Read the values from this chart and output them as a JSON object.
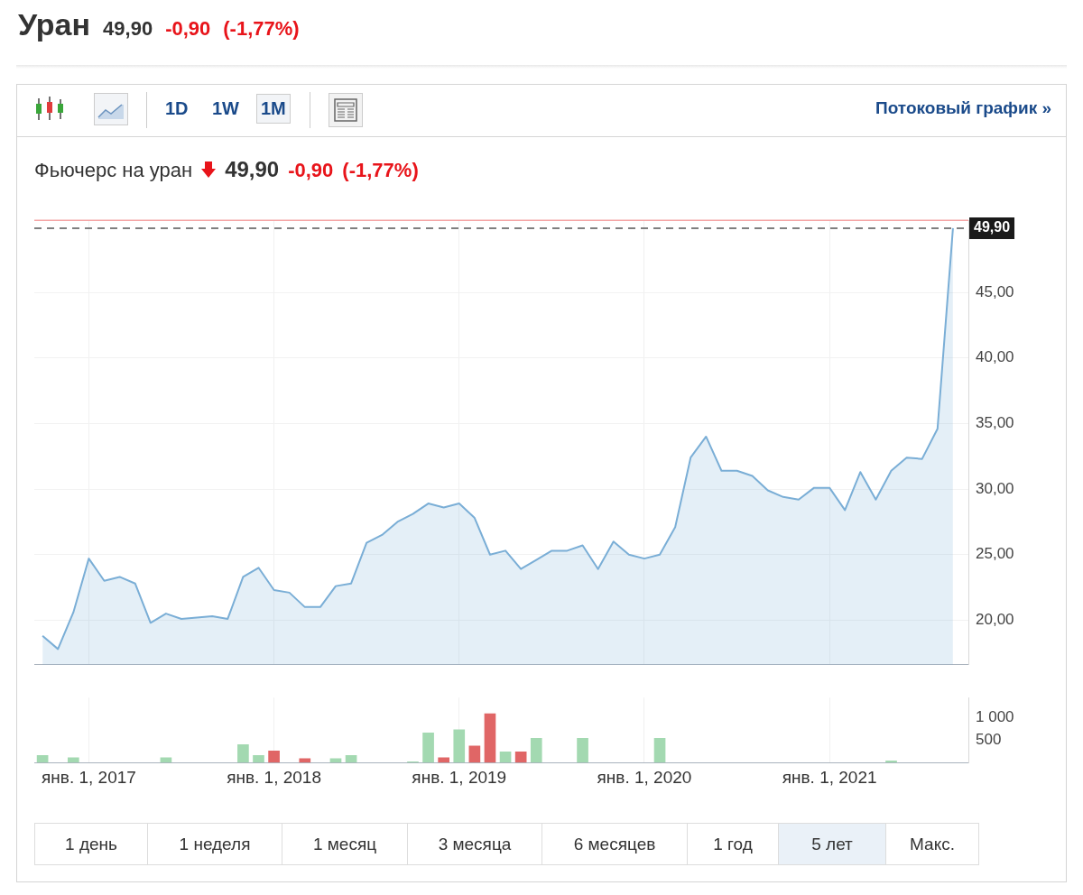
{
  "chart_data": [
    {
      "type": "area",
      "title": "Уран",
      "subtitle": "Фьючерс на уран",
      "annotations": [
        "49,90",
        "-0,90",
        "(-1,77%)",
        "1D",
        "1W",
        "1M",
        "Потоковый график »",
        "49,90",
        "-0,90",
        "(-1,77%)",
        "1 день",
        "1 неделя",
        "1 месяц",
        "3 месяца",
        "6 месяцев",
        "1 год",
        "5 лет",
        "Макс."
      ],
      "x": [
        "2016-10",
        "2016-11",
        "2016-12",
        "2017-01",
        "2017-02",
        "2017-03",
        "2017-04",
        "2017-05",
        "2017-06",
        "2017-07",
        "2017-08",
        "2017-09",
        "2017-10",
        "2017-11",
        "2017-12",
        "2018-01",
        "2018-02",
        "2018-03",
        "2018-04",
        "2018-05",
        "2018-06",
        "2018-07",
        "2018-08",
        "2018-09",
        "2018-10",
        "2018-11",
        "2018-12",
        "2019-01",
        "2019-02",
        "2019-03",
        "2019-04",
        "2019-05",
        "2019-06",
        "2019-07",
        "2019-08",
        "2019-09",
        "2019-10",
        "2019-11",
        "2019-12",
        "2020-01",
        "2020-02",
        "2020-03",
        "2020-04",
        "2020-05",
        "2020-06",
        "2020-07",
        "2020-08",
        "2020-09",
        "2020-10",
        "2020-11",
        "2020-12",
        "2021-01",
        "2021-02",
        "2021-03",
        "2021-04",
        "2021-05",
        "2021-06",
        "2021-07",
        "2021-08",
        "2021-09"
      ],
      "series": [
        {
          "color": "#7aaed6",
          "values": [
            18.8,
            17.8,
            20.6,
            24.7,
            23.0,
            23.3,
            22.8,
            19.8,
            20.5,
            20.1,
            20.2,
            20.3,
            20.1,
            23.3,
            24.0,
            22.3,
            22.1,
            21.0,
            21.0,
            22.6,
            22.8,
            25.9,
            26.5,
            27.5,
            28.1,
            28.9,
            28.6,
            28.9,
            27.8,
            25.0,
            25.3,
            23.9,
            24.6,
            25.3,
            25.3,
            25.7,
            23.9,
            26.0,
            25.0,
            24.7,
            25.0,
            27.1,
            32.4,
            34.0,
            31.4,
            31.4,
            31.0,
            29.9,
            29.4,
            29.2,
            30.1,
            30.1,
            28.4,
            31.3,
            29.2,
            31.4,
            32.4,
            32.3,
            34.6,
            49.9
          ]
        }
      ],
      "marker": "none",
      "xlim": [
        "2016-09-15",
        "2021-10"
      ],
      "xticks": [
        {
          "value": "2017-01",
          "label": null
        },
        {
          "value": "2018-01",
          "label": null
        },
        {
          "value": "2019-01",
          "label": null
        },
        {
          "value": "2020-01",
          "label": null
        },
        {
          "value": "2021-01",
          "label": null
        }
      ],
      "ylim": [
        16.6,
        50.5
      ],
      "yticks": [
        {
          "value": 20,
          "label": "20,00"
        },
        {
          "value": 25,
          "label": "25,00"
        },
        {
          "value": 30,
          "label": "30,00"
        },
        {
          "value": 35,
          "label": "35,00"
        },
        {
          "value": 40,
          "label": "40,00"
        },
        {
          "value": 45,
          "label": "45,00"
        }
      ],
      "tick_labels": "y",
      "grid": true,
      "ref_lines": [
        {
          "axis": "y",
          "value": 49.9,
          "label": "49,90",
          "color": "#555555",
          "line_style": "dashed"
        },
        {
          "axis": "y",
          "value": 50.5,
          "color": "#f4a3a3",
          "line_style": "solid"
        }
      ]
    },
    {
      "type": "bar",
      "x": [
        "2016-10",
        "2016-11",
        "2016-12",
        "2017-01",
        "2017-02",
        "2017-03",
        "2017-04",
        "2017-05",
        "2017-06",
        "2017-07",
        "2017-08",
        "2017-09",
        "2017-10",
        "2017-11",
        "2017-12",
        "2018-01",
        "2018-02",
        "2018-03",
        "2018-04",
        "2018-05",
        "2018-06",
        "2018-07",
        "2018-08",
        "2018-09",
        "2018-10",
        "2018-11",
        "2018-12",
        "2019-01",
        "2019-02",
        "2019-03",
        "2019-04",
        "2019-05",
        "2019-06",
        "2019-07",
        "2019-08",
        "2019-09",
        "2019-10",
        "2019-11",
        "2019-12",
        "2020-01",
        "2020-02",
        "2020-03",
        "2020-04",
        "2020-05",
        "2020-06",
        "2020-07",
        "2020-08",
        "2020-09",
        "2020-10",
        "2020-11",
        "2020-12",
        "2021-01",
        "2021-02",
        "2021-03",
        "2021-04",
        "2021-05"
      ],
      "values": [
        160,
        null,
        110,
        null,
        null,
        null,
        null,
        null,
        110,
        null,
        null,
        null,
        null,
        400,
        160,
        260,
        null,
        90,
        null,
        90,
        160,
        null,
        null,
        null,
        20,
        660,
        110,
        730,
        370,
        1090,
        240,
        240,
        540,
        null,
        null,
        540,
        null,
        null,
        null,
        null,
        540,
        null,
        null,
        null,
        null,
        null,
        null,
        null,
        null,
        null,
        null,
        null,
        null,
        null,
        null,
        40
      ],
      "colors": [
        "#a3d9b1",
        "#a3d9b1",
        "#a3d9b1",
        "#a3d9b1",
        "#a3d9b1",
        "#a3d9b1",
        "#a3d9b1",
        "#a3d9b1",
        "#a3d9b1",
        "#a3d9b1",
        "#a3d9b1",
        "#a3d9b1",
        "#a3d9b1",
        "#a3d9b1",
        "#a3d9b1",
        "#e06666",
        "#a3d9b1",
        "#e06666",
        "#a3d9b1",
        "#a3d9b1",
        "#a3d9b1",
        "#a3d9b1",
        "#a3d9b1",
        "#a3d9b1",
        "#a3d9b1",
        "#a3d9b1",
        "#e06666",
        "#a3d9b1",
        "#e06666",
        "#e06666",
        "#a3d9b1",
        "#e06666",
        "#a3d9b1",
        "#a3d9b1",
        "#a3d9b1",
        "#a3d9b1",
        "#a3d9b1",
        "#a3d9b1",
        "#a3d9b1",
        "#a3d9b1",
        "#a3d9b1",
        "#a3d9b1",
        "#a3d9b1",
        "#a3d9b1",
        "#a3d9b1",
        "#a3d9b1",
        "#a3d9b1",
        "#a3d9b1",
        "#a3d9b1",
        "#a3d9b1",
        "#a3d9b1",
        "#a3d9b1",
        "#a3d9b1",
        "#a3d9b1",
        "#a3d9b1",
        "#a3d9b1"
      ],
      "xlim": [
        "2016-09-15",
        "2021-10"
      ],
      "xticks": [
        {
          "value": "2017-01",
          "label": "янв. 1, 2017"
        },
        {
          "value": "2018-01",
          "label": "янв. 1, 2018"
        },
        {
          "value": "2019-01",
          "label": "янв. 1, 2019"
        },
        {
          "value": "2020-01",
          "label": "янв. 1, 2020"
        },
        {
          "value": "2021-01",
          "label": "янв. 1, 2021"
        }
      ],
      "ylim": [
        0,
        1450
      ],
      "yticks": [
        500,
        {
          "value": 1000,
          "label": "1 000"
        }
      ],
      "grid": "x"
    }
  ]
}
